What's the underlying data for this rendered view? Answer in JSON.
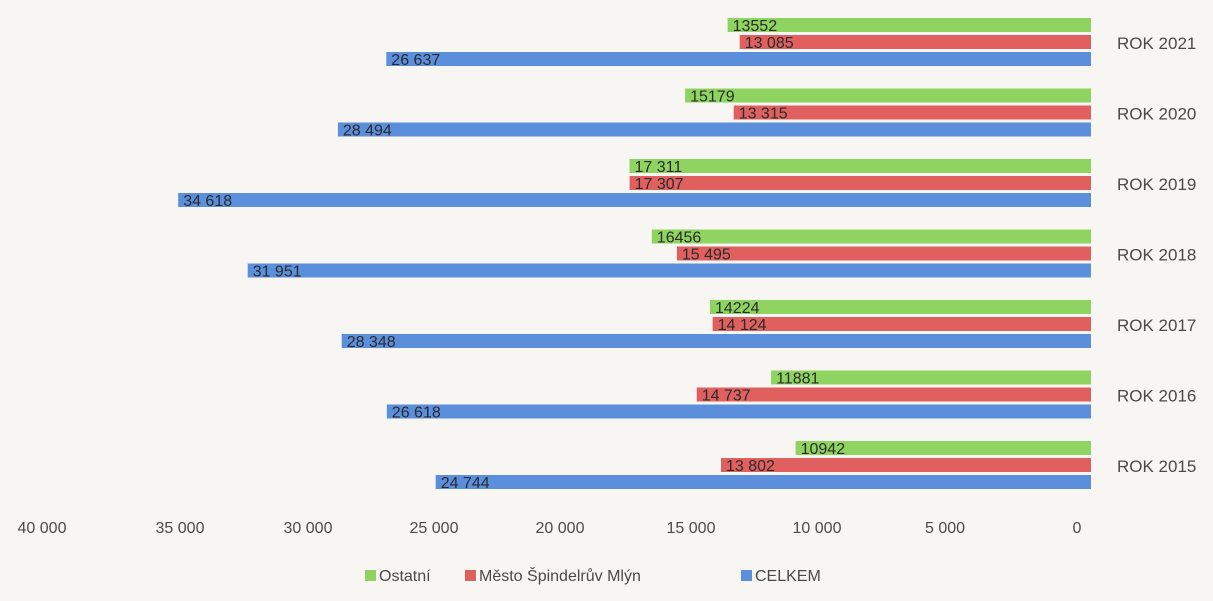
{
  "chart_data": {
    "type": "bar",
    "orientation": "horizontal",
    "x_axis_reversed": true,
    "categories": [
      "ROK 2021",
      "ROK 2020",
      "ROK 2019",
      "ROK 2018",
      "ROK 2017",
      "ROK 2016",
      "ROK 2015"
    ],
    "series": [
      {
        "name": "Ostatní",
        "color": "#8fd460",
        "values": [
          13552,
          15179,
          17311,
          16456,
          14224,
          11881,
          10942
        ],
        "labels": [
          "13552",
          "15179",
          "17 311",
          "16456",
          "14224",
          "11881",
          "10942"
        ]
      },
      {
        "name": "Město Špindelrův Mlýn",
        "color": "#e06060",
        "values": [
          13085,
          13315,
          17307,
          15495,
          14124,
          14737,
          13802
        ],
        "labels": [
          "13 085",
          "13 315",
          "17 307",
          "15 495",
          "14 124",
          "14 737",
          "13 802"
        ]
      },
      {
        "name": "CELKEM",
        "color": "#5b8fdc",
        "values": [
          26637,
          28494,
          34618,
          31951,
          28348,
          26618,
          24744
        ],
        "labels": [
          "26 637",
          "28 494",
          "34 618",
          "31 951",
          "28 348",
          "26 618",
          "24 744"
        ]
      }
    ],
    "xlim": [
      0,
      40000
    ],
    "x_ticks": [
      40000,
      35000,
      30000,
      25000,
      20000,
      15000,
      10000,
      5000,
      0
    ],
    "x_tick_labels": [
      "40 000",
      "35 000",
      "30 000",
      "25 000",
      "20 000",
      "15 000",
      "10 000",
      "5 000",
      "0"
    ],
    "grid": false,
    "legend_position": "bottom"
  }
}
